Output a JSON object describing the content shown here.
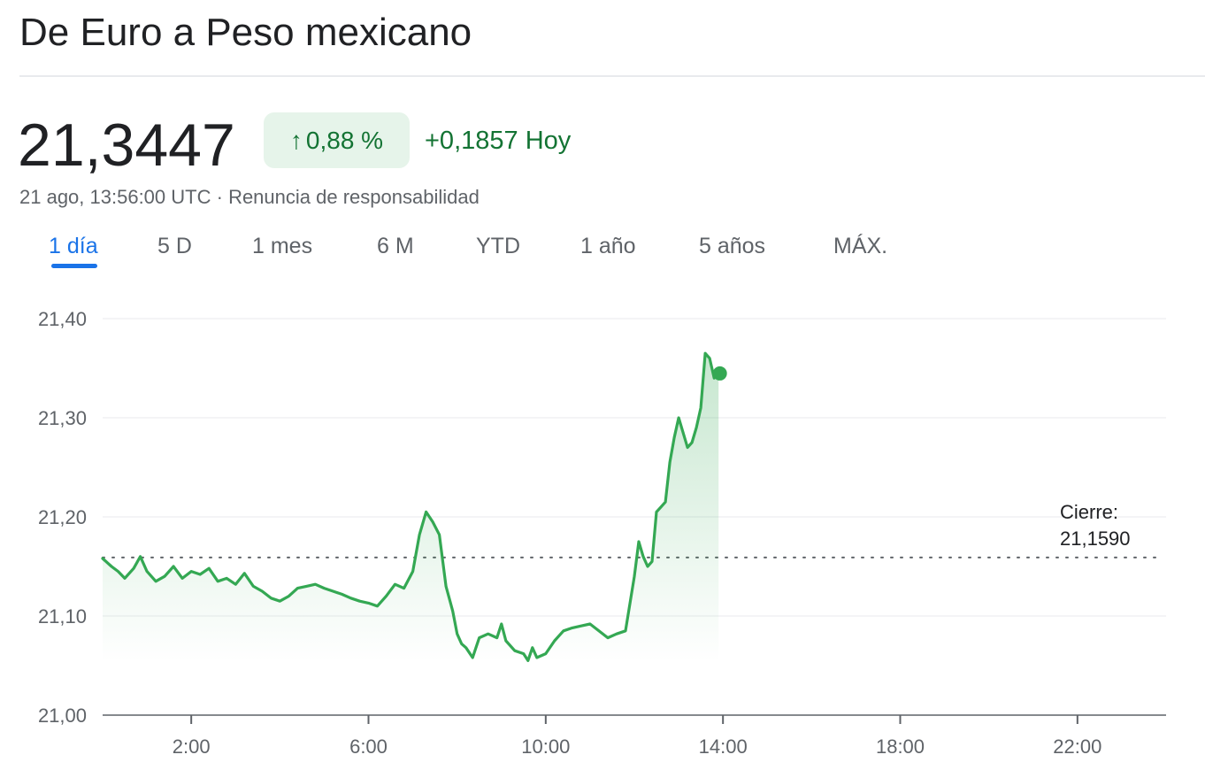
{
  "header": {
    "title": "De Euro a Peso mexicano"
  },
  "quote": {
    "price": "21,3447",
    "change_arrow": "↑",
    "change_percent": "0,88 %",
    "change_absolute": "+0,1857 Hoy",
    "timestamp": "21 ago, 13:56:00 UTC",
    "separator": "·",
    "disclaimer": "Renuncia de responsabilidad",
    "positive_color": "#137333",
    "positive_bg": "#e6f4ea"
  },
  "tabs": [
    {
      "label": "1 día",
      "active": true
    },
    {
      "label": "5 D",
      "active": false
    },
    {
      "label": "1 mes",
      "active": false
    },
    {
      "label": "6 M",
      "active": false
    },
    {
      "label": "YTD",
      "active": false
    },
    {
      "label": "1 año",
      "active": false
    },
    {
      "label": "5 años",
      "active": false
    },
    {
      "label": "MÁX.",
      "active": false
    }
  ],
  "chart_data": {
    "type": "line",
    "title": "",
    "xlabel": "",
    "ylabel": "",
    "x_unit": "hours",
    "xlim": [
      0,
      24
    ],
    "ylim": [
      21.0,
      21.4
    ],
    "yticks": [
      21.0,
      21.1,
      21.2,
      21.3,
      21.4
    ],
    "ytick_labels": [
      "21,00",
      "21,10",
      "21,20",
      "21,30",
      "21,40"
    ],
    "xticks": [
      2,
      6,
      10,
      14,
      18,
      22
    ],
    "xtick_labels": [
      "2:00",
      "6:00",
      "10:00",
      "14:00",
      "18:00",
      "22:00"
    ],
    "grid": true,
    "line_color": "#34a853",
    "previous_close": {
      "value": 21.159,
      "label_line1": "Cierre:",
      "label_line2": "21,1590"
    },
    "series": [
      {
        "x": [
          0.0,
          0.2,
          0.35,
          0.5,
          0.7,
          0.85,
          1.0,
          1.2,
          1.4,
          1.6,
          1.8,
          2.0,
          2.2,
          2.4,
          2.6,
          2.8,
          3.0,
          3.2,
          3.4,
          3.6,
          3.8,
          4.0,
          4.2,
          4.4,
          4.6,
          4.8,
          5.0,
          5.2,
          5.4,
          5.6,
          5.8,
          6.0,
          6.2,
          6.4,
          6.6,
          6.8,
          7.0,
          7.15,
          7.3,
          7.45,
          7.6,
          7.75,
          7.9,
          8.0,
          8.1,
          8.2,
          8.35,
          8.5,
          8.7,
          8.9,
          9.0,
          9.1,
          9.3,
          9.5,
          9.6,
          9.7,
          9.8,
          10.0,
          10.2,
          10.4,
          10.6,
          10.8,
          11.0,
          11.2,
          11.4,
          11.6,
          11.8,
          12.0,
          12.1,
          12.2,
          12.3,
          12.4,
          12.5,
          12.6,
          12.7,
          12.8,
          12.9,
          13.0,
          13.1,
          13.2,
          13.3,
          13.4,
          13.5,
          13.6,
          13.7,
          13.8,
          13.9
        ],
        "y": [
          21.158,
          21.15,
          21.145,
          21.138,
          21.148,
          21.16,
          21.145,
          21.135,
          21.14,
          21.15,
          21.138,
          21.145,
          21.142,
          21.148,
          21.135,
          21.138,
          21.132,
          21.143,
          21.13,
          21.125,
          21.118,
          21.115,
          21.12,
          21.128,
          21.13,
          21.132,
          21.128,
          21.125,
          21.122,
          21.118,
          21.115,
          21.113,
          21.11,
          21.12,
          21.132,
          21.128,
          21.145,
          21.182,
          21.205,
          21.195,
          21.182,
          21.13,
          21.105,
          21.082,
          21.072,
          21.068,
          21.058,
          21.078,
          21.082,
          21.078,
          21.092,
          21.075,
          21.065,
          21.062,
          21.055,
          21.068,
          21.058,
          21.062,
          21.075,
          21.085,
          21.088,
          21.09,
          21.092,
          21.085,
          21.078,
          21.082,
          21.085,
          21.14,
          21.175,
          21.16,
          21.15,
          21.155,
          21.205,
          21.21,
          21.215,
          21.255,
          21.28,
          21.3,
          21.285,
          21.27,
          21.275,
          21.29,
          21.31,
          21.365,
          21.36,
          21.34,
          21.3447
        ]
      }
    ],
    "last_point": {
      "x": 13.93,
      "y": 21.3447
    }
  }
}
